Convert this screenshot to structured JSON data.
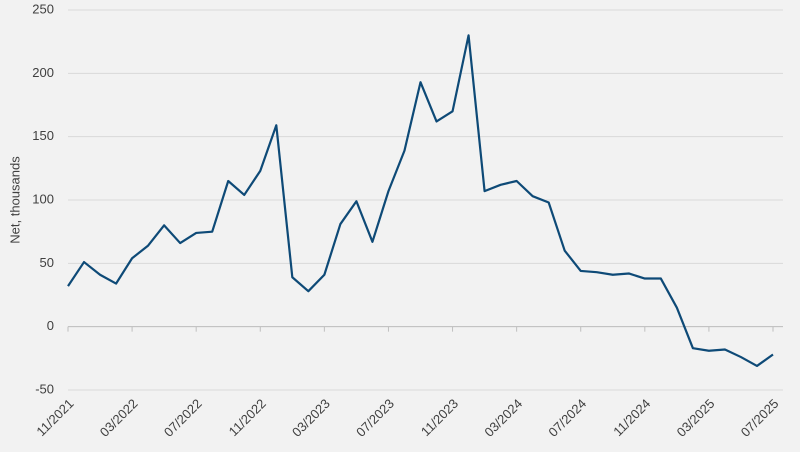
{
  "chart_data": {
    "type": "line",
    "y_label": "Net, thousands",
    "categories": [
      "11/2021",
      null,
      null,
      null,
      "03/2022",
      null,
      null,
      null,
      "07/2022",
      null,
      null,
      null,
      "11/2022",
      null,
      null,
      null,
      "03/2023",
      null,
      null,
      null,
      "07/2023",
      null,
      null,
      null,
      "11/2023",
      null,
      null,
      null,
      "03/2024",
      null,
      null,
      null,
      "07/2024",
      null,
      null,
      null,
      "11/2024",
      null,
      null,
      null,
      "03/2025",
      null,
      null,
      null,
      "07/2025"
    ],
    "series": [
      {
        "color": "#0e4a77",
        "values": [
          32,
          51,
          41,
          34,
          54,
          64,
          80,
          66,
          74,
          75,
          115,
          104,
          123,
          159,
          39,
          28,
          41,
          81,
          99,
          67,
          107,
          139,
          193,
          162,
          170,
          230,
          107,
          112,
          115,
          103,
          98,
          60,
          44,
          43,
          41,
          42,
          38,
          38,
          15,
          -17,
          -19,
          -18,
          -24,
          -31,
          -22
        ]
      }
    ],
    "ylim": [
      -50,
      250
    ],
    "yticks": [
      -50,
      0,
      50,
      100,
      150,
      200,
      250
    ],
    "grid": true
  }
}
